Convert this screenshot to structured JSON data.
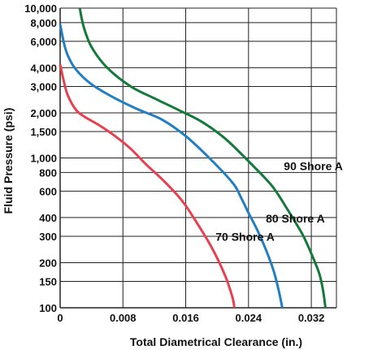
{
  "chart_data": {
    "type": "line",
    "xlabel": "Total Diametrical Clearance (in.)",
    "ylabel": "Fluid Pressure (psi)",
    "x_scale": "linear",
    "y_scale": "log",
    "xlim": [
      0,
      0.0352
    ],
    "ylim": [
      100,
      10000
    ],
    "grid": true,
    "x_ticks": [
      0,
      0.008,
      0.016,
      0.024,
      0.032
    ],
    "x_tick_labels": [
      "0",
      "0.008",
      "0.016",
      "0.024",
      "0.032"
    ],
    "y_ticks": [
      100,
      150,
      200,
      300,
      400,
      600,
      800,
      1000,
      1500,
      2000,
      3000,
      4000,
      6000,
      8000,
      10000
    ],
    "y_tick_labels": [
      "100",
      "150",
      "200",
      "300",
      "400",
      "600",
      "800",
      "1,000",
      "1,500",
      "2,000",
      "3,000",
      "4,000",
      "6,000",
      "8,000",
      "10,000"
    ],
    "series": [
      {
        "name": "70 Shore A",
        "color": "#e8404e",
        "x": [
          0.0,
          0.0005,
          0.001,
          0.002,
          0.003,
          0.005,
          0.007,
          0.009,
          0.011,
          0.013,
          0.015,
          0.016,
          0.017,
          0.018,
          0.019,
          0.02,
          0.021,
          0.0215,
          0.022,
          0.0222
        ],
        "y": [
          4200,
          3200,
          2600,
          2100,
          1900,
          1650,
          1400,
          1150,
          900,
          720,
          560,
          480,
          400,
          330,
          270,
          215,
          165,
          140,
          115,
          100
        ]
      },
      {
        "name": "80 Shore A",
        "color": "#1f7fc0",
        "x": [
          0.0,
          0.0005,
          0.001,
          0.002,
          0.004,
          0.007,
          0.01,
          0.013,
          0.016,
          0.019,
          0.022,
          0.023,
          0.024,
          0.025,
          0.026,
          0.027,
          0.0275,
          0.028,
          0.0283
        ],
        "y": [
          7800,
          5800,
          4800,
          3900,
          3100,
          2500,
          2100,
          1800,
          1400,
          1000,
          680,
          550,
          430,
          340,
          260,
          190,
          155,
          120,
          100
        ]
      },
      {
        "name": "90 Shore A",
        "color": "#137a3a",
        "x": [
          0.0025,
          0.003,
          0.004,
          0.006,
          0.009,
          0.012,
          0.015,
          0.018,
          0.021,
          0.024,
          0.027,
          0.029,
          0.03,
          0.031,
          0.032,
          0.033,
          0.0335,
          0.0338
        ],
        "y": [
          10000,
          7500,
          5500,
          4000,
          3000,
          2500,
          2100,
          1750,
          1350,
          950,
          650,
          450,
          370,
          300,
          230,
          170,
          130,
          100
        ]
      }
    ],
    "annotations": [
      {
        "text": "90 Shore A",
        "x": 0.0285,
        "y": 830
      },
      {
        "text": "80 Shore A",
        "x": 0.0262,
        "y": 370
      },
      {
        "text": "70 Shore A",
        "x": 0.0198,
        "y": 280
      }
    ],
    "colors": {
      "grid": "#222222",
      "background": "#ffffff"
    }
  }
}
